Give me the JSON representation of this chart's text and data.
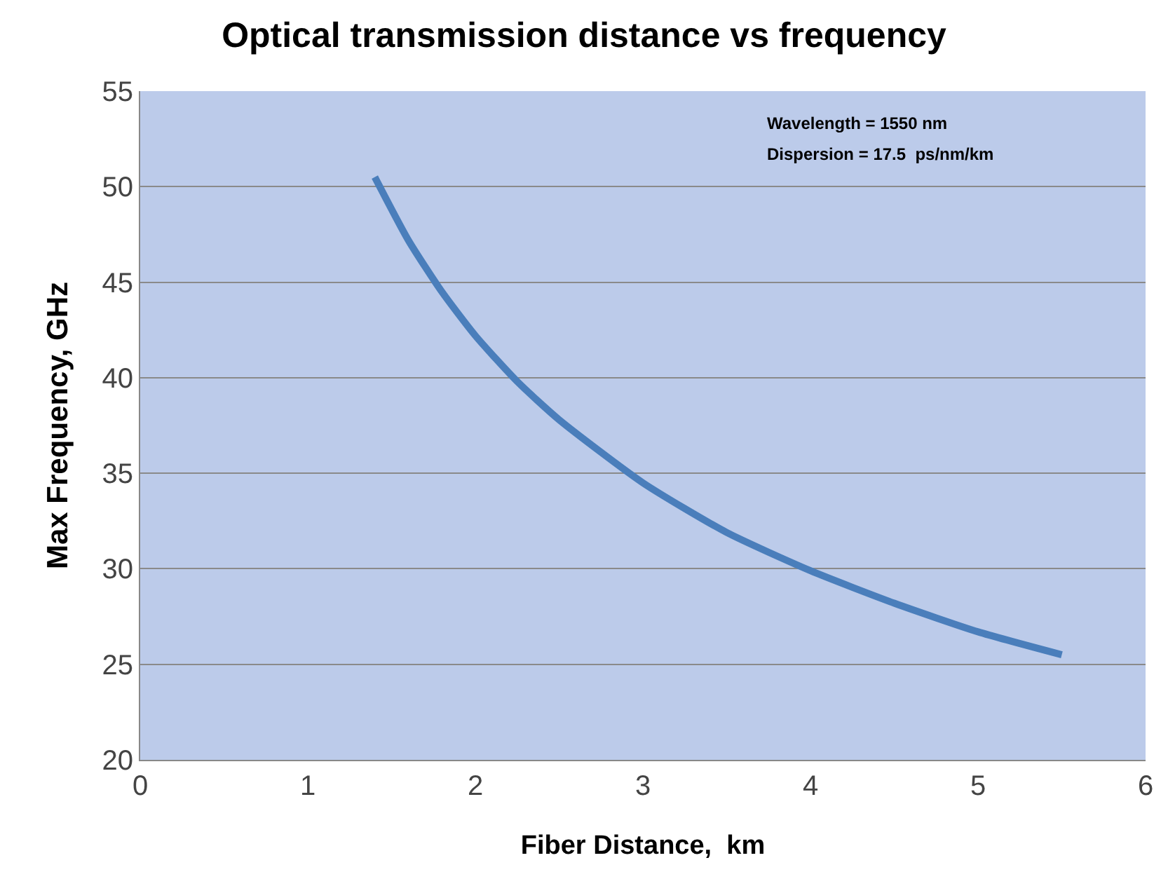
{
  "chart_data": {
    "type": "line",
    "title": "Optical transmission distance vs frequency",
    "xlabel": "Fiber Distance,  km",
    "ylabel": "Max Frequency, GHz",
    "annotations": [
      "Wavelength = 1550 nm",
      "Dispersion = 17.5  ps/nm/km"
    ],
    "series": [
      {
        "color": "#4a7ebb",
        "x": [
          1.4,
          1.6,
          1.8,
          2,
          2.25,
          2.5,
          3,
          3.5,
          4,
          4.5,
          5,
          5.5
        ],
        "values": [
          50.5,
          47.2,
          44.5,
          42.2,
          39.8,
          37.8,
          34.5,
          31.9,
          29.9,
          28.2,
          26.7,
          25.5
        ]
      }
    ],
    "xlim": [
      0,
      6
    ],
    "xticks": [
      0,
      1,
      2,
      3,
      4,
      5,
      6
    ],
    "ylim": [
      20,
      55
    ],
    "yticks": [
      20,
      25,
      30,
      35,
      40,
      45,
      50,
      55
    ],
    "grid": "y",
    "marker": "none",
    "line_style": "solid"
  }
}
